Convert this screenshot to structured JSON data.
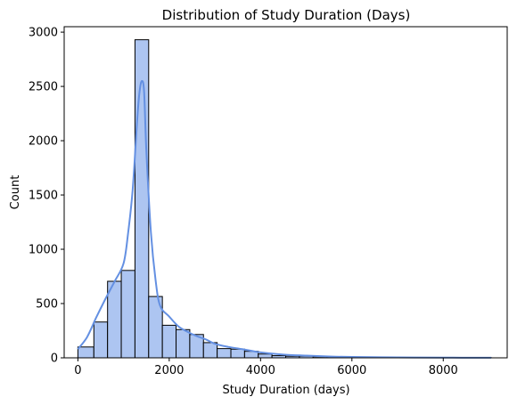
{
  "chart_data": {
    "type": "bar",
    "title": "Distribution of Study Duration (Days)",
    "xlabel": "Study Duration (days)",
    "ylabel": "Count",
    "xlim": [
      -300,
      9400
    ],
    "ylim": [
      0,
      3050
    ],
    "xticks": [
      0,
      2000,
      4000,
      6000,
      8000
    ],
    "xtick_labels": [
      "0",
      "2000",
      "4000",
      "6000",
      "8000"
    ],
    "yticks": [
      0,
      500,
      1000,
      1500,
      2000,
      2500,
      3000
    ],
    "ytick_labels": [
      "0",
      "500",
      "1000",
      "1500",
      "2000",
      "2500",
      "3000"
    ],
    "grid": false,
    "bins": {
      "edges": [
        0,
        350,
        650,
        950,
        1250,
        1550,
        1850,
        2150,
        2450,
        2750,
        3050,
        3350,
        3650,
        3950,
        4250,
        4550,
        4850,
        5150,
        5450,
        5750,
        6050,
        6350,
        6650,
        6950,
        7250,
        7550,
        7850,
        8150,
        8450,
        8750,
        9050
      ],
      "counts": [
        100,
        330,
        705,
        805,
        2930,
        565,
        300,
        260,
        215,
        140,
        85,
        80,
        60,
        35,
        20,
        15,
        15,
        10,
        5,
        5,
        5,
        5,
        5,
        3,
        3,
        3,
        2,
        2,
        2,
        2
      ]
    },
    "kde": {
      "x": [
        0,
        200,
        400,
        600,
        800,
        1000,
        1100,
        1200,
        1300,
        1350,
        1400,
        1450,
        1500,
        1600,
        1700,
        1800,
        2000,
        2200,
        2400,
        2600,
        2800,
        3000,
        3300,
        3600,
        4000,
        4500,
        5000,
        5500,
        6000,
        7000,
        8000,
        9050
      ],
      "y": [
        80,
        190,
        370,
        540,
        700,
        870,
        1150,
        1550,
        2200,
        2450,
        2550,
        2450,
        1900,
        1150,
        720,
        480,
        380,
        290,
        240,
        200,
        170,
        130,
        100,
        80,
        50,
        30,
        20,
        12,
        8,
        4,
        2,
        1
      ]
    },
    "bar_fill": "#adc5f1",
    "bar_edge": "#000000",
    "kde_color": "#6490e2"
  }
}
